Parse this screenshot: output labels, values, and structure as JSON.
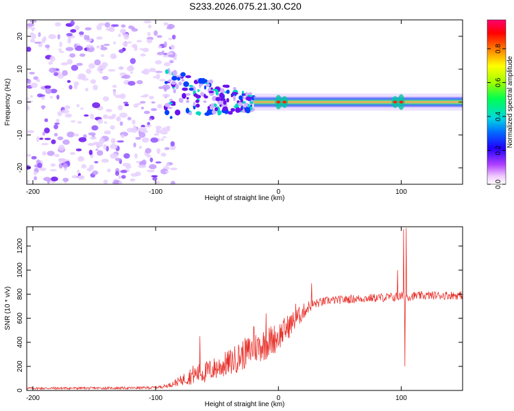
{
  "title": "S233.2026.075.21.30.C20",
  "chart_data": [
    {
      "type": "heatmap",
      "xlabel": "Height of straight line (km)",
      "ylabel": "Frequency (Hz)",
      "xlim": [
        -205,
        150
      ],
      "ylim": [
        -25,
        25
      ],
      "xticks": [
        -200,
        -100,
        0,
        100
      ],
      "xtick_labels": [
        "-200",
        "-100",
        "0",
        "100"
      ],
      "yticks": [
        20,
        10,
        0,
        -10,
        -20
      ],
      "ytick_labels": [
        "20",
        "10",
        "0",
        "-10",
        "-20"
      ],
      "colorbar": {
        "label": "Normalized spectral amplitude",
        "range": [
          0,
          0.97
        ],
        "ticks": [
          0.0,
          0.2,
          0.4,
          0.6,
          0.8
        ],
        "tick_labels": [
          "0.0",
          "0.2",
          "0.4",
          "0.6",
          "0.8"
        ],
        "colors": [
          "#ffffff",
          "#ff00ff",
          "#8000ff",
          "#0000ff",
          "#00c0ff",
          "#00ff80",
          "#80ff00",
          "#ffff00",
          "#ff8000",
          "#ff0000",
          "#ff0080"
        ]
      },
      "noise_region_x": [
        -205,
        -90
      ],
      "signal_band_center_hz": 0,
      "signal_onset_km": -90,
      "strong_signal_from_km": -20
    },
    {
      "type": "line",
      "xlabel": "Height of straight line (km)",
      "ylabel": "SNR (10 * v/v)",
      "xlim": [
        -205,
        150
      ],
      "ylim": [
        0,
        1360
      ],
      "xticks": [
        -200,
        -100,
        0,
        100
      ],
      "xtick_labels": [
        "-200",
        "-100",
        "0",
        "100"
      ],
      "yticks": [
        0,
        200,
        400,
        600,
        800,
        1000,
        1200
      ],
      "ytick_labels": [
        "0",
        "200",
        "400",
        "600",
        "800",
        "1000",
        "1200"
      ],
      "color": "#e8302a",
      "envelope": {
        "x": [
          -205,
          -120,
          -100,
          -90,
          -80,
          -70,
          -60,
          -50,
          -40,
          -30,
          -20,
          -10,
          0,
          10,
          20,
          25,
          30,
          40,
          60,
          80,
          95,
          100,
          103,
          105,
          110,
          130,
          150
        ],
        "base": [
          18,
          20,
          24,
          40,
          80,
          130,
          150,
          190,
          230,
          290,
          350,
          390,
          450,
          550,
          650,
          700,
          720,
          745,
          760,
          770,
          775,
          780,
          780,
          780,
          785,
          790,
          790
        ],
        "amp": [
          10,
          10,
          12,
          15,
          40,
          80,
          90,
          100,
          110,
          130,
          130,
          140,
          120,
          100,
          70,
          50,
          40,
          35,
          35,
          35,
          40,
          40,
          40,
          40,
          35,
          35,
          35
        ]
      },
      "spikes": [
        {
          "x": -64,
          "y": 450
        },
        {
          "x": -20,
          "y": 530
        },
        {
          "x": -10,
          "y": 640
        },
        {
          "x": 14,
          "y": 720
        },
        {
          "x": 27,
          "y": 890
        },
        {
          "x": 97,
          "y": 1000
        },
        {
          "x": 102,
          "y": 1340
        },
        {
          "x": 103,
          "y": 200
        },
        {
          "x": 104,
          "y": 1350
        }
      ]
    }
  ]
}
